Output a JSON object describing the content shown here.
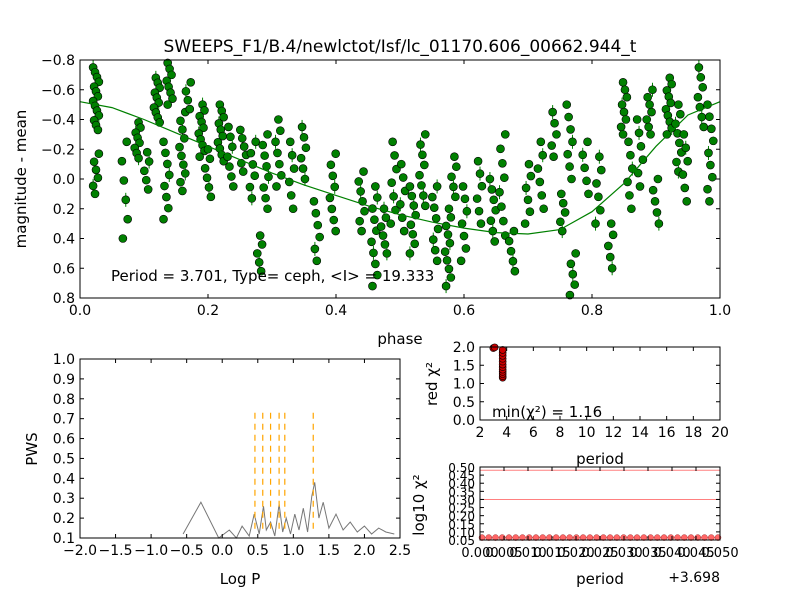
{
  "chart_data": [
    {
      "id": "lightcurve",
      "type": "scatter",
      "title": "SWEEPS_F1/B.4/newlctot/Isf/lc_01170.606_00662.944_t",
      "xlabel": "phase",
      "ylabel": "magnitude - mean",
      "xlim": [
        0.0,
        1.0
      ],
      "ylim": [
        0.8,
        -0.8
      ],
      "y_inverted": true,
      "xticks": [
        "0.0",
        "0.2",
        "0.4",
        "0.6",
        "0.8",
        "1.0"
      ],
      "yticks": [
        "−0.8",
        "−0.6",
        "−0.4",
        "−0.2",
        "0.0",
        "0.2",
        "0.4",
        "0.6",
        "0.8"
      ],
      "annotation": "Period = 3.701, Type= ceph, <I> = 19.333",
      "marker_color": "#008000",
      "fit_color": "#008000",
      "fit": {
        "x": [
          0.0,
          0.05,
          0.1,
          0.15,
          0.2,
          0.25,
          0.3,
          0.35,
          0.4,
          0.45,
          0.5,
          0.55,
          0.6,
          0.65,
          0.7,
          0.75,
          0.8,
          0.85,
          0.9,
          0.95,
          1.0
        ],
        "y": [
          -0.52,
          -0.48,
          -0.4,
          -0.31,
          -0.22,
          -0.13,
          -0.04,
          0.04,
          0.11,
          0.18,
          0.24,
          0.29,
          0.33,
          0.36,
          0.37,
          0.34,
          0.22,
          0.03,
          -0.22,
          -0.43,
          -0.52
        ]
      },
      "clusters": [
        {
          "x": 0.025,
          "y_min": -0.75,
          "y_max": -0.33,
          "n": 14
        },
        {
          "x": 0.025,
          "y_min": -0.17,
          "y_max": 0.1,
          "n": 6
        },
        {
          "x": 0.07,
          "y_min": -0.25,
          "y_max": 0.4,
          "n": 6
        },
        {
          "x": 0.09,
          "y_min": -0.38,
          "y_max": -0.14,
          "n": 8
        },
        {
          "x": 0.105,
          "y_min": -0.18,
          "y_max": 0.07,
          "n": 5
        },
        {
          "x": 0.12,
          "y_min": -0.68,
          "y_max": -0.38,
          "n": 10
        },
        {
          "x": 0.14,
          "y_min": -0.78,
          "y_max": -0.5,
          "n": 8
        },
        {
          "x": 0.135,
          "y_min": -0.25,
          "y_max": 0.27,
          "n": 8
        },
        {
          "x": 0.16,
          "y_min": -0.45,
          "y_max": 0.08,
          "n": 10
        },
        {
          "x": 0.17,
          "y_min": -0.65,
          "y_max": -0.47,
          "n": 4
        },
        {
          "x": 0.19,
          "y_min": -0.5,
          "y_max": -0.15,
          "n": 10
        },
        {
          "x": 0.2,
          "y_min": -0.2,
          "y_max": 0.12,
          "n": 6
        },
        {
          "x": 0.22,
          "y_min": -0.5,
          "y_max": -0.12,
          "n": 10
        },
        {
          "x": 0.235,
          "y_min": -0.35,
          "y_max": 0.05,
          "n": 7
        },
        {
          "x": 0.255,
          "y_min": -0.33,
          "y_max": -0.05,
          "n": 6
        },
        {
          "x": 0.27,
          "y_min": -0.25,
          "y_max": 0.13,
          "n": 6
        },
        {
          "x": 0.29,
          "y_min": -0.3,
          "y_max": 0.2,
          "n": 8
        },
        {
          "x": 0.28,
          "y_min": 0.38,
          "y_max": 0.62,
          "n": 5
        },
        {
          "x": 0.31,
          "y_min": -0.4,
          "y_max": 0.05,
          "n": 7
        },
        {
          "x": 0.33,
          "y_min": -0.25,
          "y_max": 0.2,
          "n": 6
        },
        {
          "x": 0.35,
          "y_min": -0.35,
          "y_max": 0.0,
          "n": 6
        },
        {
          "x": 0.37,
          "y_min": 0.15,
          "y_max": 0.55,
          "n": 6
        },
        {
          "x": 0.395,
          "y_min": -0.17,
          "y_max": 0.35,
          "n": 8
        },
        {
          "x": 0.44,
          "y_min": -0.05,
          "y_max": 0.35,
          "n": 7
        },
        {
          "x": 0.46,
          "y_min": 0.05,
          "y_max": 0.72,
          "n": 10
        },
        {
          "x": 0.475,
          "y_min": 0.2,
          "y_max": 0.5,
          "n": 6
        },
        {
          "x": 0.49,
          "y_min": -0.25,
          "y_max": 0.3,
          "n": 7
        },
        {
          "x": 0.505,
          "y_min": -0.1,
          "y_max": 0.35,
          "n": 6
        },
        {
          "x": 0.52,
          "y_min": 0.05,
          "y_max": 0.5,
          "n": 8
        },
        {
          "x": 0.535,
          "y_min": -0.3,
          "y_max": 0.18,
          "n": 8
        },
        {
          "x": 0.555,
          "y_min": 0.05,
          "y_max": 0.55,
          "n": 8
        },
        {
          "x": 0.575,
          "y_min": 0.2,
          "y_max": 0.72,
          "n": 10
        },
        {
          "x": 0.585,
          "y_min": -0.15,
          "y_max": 0.12,
          "n": 5
        },
        {
          "x": 0.6,
          "y_min": 0.05,
          "y_max": 0.55,
          "n": 7
        },
        {
          "x": 0.625,
          "y_min": -0.12,
          "y_max": 0.3,
          "n": 6
        },
        {
          "x": 0.645,
          "y_min": 0.0,
          "y_max": 0.42,
          "n": 7
        },
        {
          "x": 0.66,
          "y_min": -0.3,
          "y_max": 0.38,
          "n": 8
        },
        {
          "x": 0.675,
          "y_min": 0.35,
          "y_max": 0.62,
          "n": 5
        },
        {
          "x": 0.7,
          "y_min": -0.1,
          "y_max": 0.3,
          "n": 6
        },
        {
          "x": 0.72,
          "y_min": -0.25,
          "y_max": 0.2,
          "n": 6
        },
        {
          "x": 0.74,
          "y_min": -0.45,
          "y_max": -0.15,
          "n": 5
        },
        {
          "x": 0.755,
          "y_min": 0.1,
          "y_max": 0.35,
          "n": 5
        },
        {
          "x": 0.765,
          "y_min": -0.5,
          "y_max": 0.0,
          "n": 7
        },
        {
          "x": 0.77,
          "y_min": 0.5,
          "y_max": 0.78,
          "n": 5
        },
        {
          "x": 0.79,
          "y_min": -0.25,
          "y_max": 0.1,
          "n": 5
        },
        {
          "x": 0.81,
          "y_min": -0.15,
          "y_max": 0.3,
          "n": 6
        },
        {
          "x": 0.83,
          "y_min": 0.3,
          "y_max": 0.6,
          "n": 5
        },
        {
          "x": 0.85,
          "y_min": -0.65,
          "y_max": -0.3,
          "n": 8
        },
        {
          "x": 0.86,
          "y_min": -0.25,
          "y_max": 0.2,
          "n": 6
        },
        {
          "x": 0.875,
          "y_min": -0.4,
          "y_max": 0.05,
          "n": 6
        },
        {
          "x": 0.89,
          "y_min": -0.6,
          "y_max": -0.3,
          "n": 7
        },
        {
          "x": 0.9,
          "y_min": 0.0,
          "y_max": 0.3,
          "n": 5
        },
        {
          "x": 0.92,
          "y_min": -0.68,
          "y_max": -0.3,
          "n": 10
        },
        {
          "x": 0.935,
          "y_min": -0.5,
          "y_max": -0.05,
          "n": 8
        },
        {
          "x": 0.945,
          "y_min": -0.3,
          "y_max": 0.15,
          "n": 6
        },
        {
          "x": 0.97,
          "y_min": -0.75,
          "y_max": -0.35,
          "n": 7
        },
        {
          "x": 0.985,
          "y_min": -0.5,
          "y_max": 0.15,
          "n": 9
        }
      ]
    },
    {
      "id": "periodogram",
      "type": "line",
      "xlabel": "Log P",
      "ylabel": "PWS",
      "xlim": [
        -2.0,
        2.5
      ],
      "ylim": [
        0.1,
        1.0
      ],
      "xticks": [
        "−2.0",
        "−1.5",
        "−1.0",
        "−0.5",
        "0.0",
        "0.5",
        "1.0",
        "1.5",
        "2.0",
        "2.5"
      ],
      "yticks": [
        "0.1",
        "0.2",
        "0.3",
        "0.4",
        "0.5",
        "0.6",
        "0.7",
        "0.8",
        "0.9",
        "1.0"
      ],
      "line_color": "#777777",
      "marker_color": "#ffa500",
      "peak_markers": [
        0.46,
        0.57,
        0.68,
        0.8,
        0.88,
        1.28
      ],
      "marker_ymax": 0.73,
      "series_x": [
        -0.55,
        -0.3,
        -0.05,
        0.1,
        0.2,
        0.28,
        0.38,
        0.45,
        0.52,
        0.58,
        0.62,
        0.68,
        0.74,
        0.8,
        0.85,
        0.9,
        0.96,
        1.02,
        1.08,
        1.14,
        1.2,
        1.26,
        1.3,
        1.36,
        1.42,
        1.5,
        1.6,
        1.7,
        1.8,
        1.9,
        2.0,
        2.1,
        2.2,
        2.3,
        2.42
      ],
      "series_y": [
        0.12,
        0.28,
        0.1,
        0.14,
        0.1,
        0.16,
        0.11,
        0.22,
        0.12,
        0.26,
        0.14,
        0.18,
        0.11,
        0.27,
        0.13,
        0.2,
        0.12,
        0.22,
        0.14,
        0.25,
        0.13,
        0.31,
        0.38,
        0.2,
        0.28,
        0.15,
        0.22,
        0.14,
        0.18,
        0.13,
        0.16,
        0.12,
        0.15,
        0.13,
        0.12
      ]
    },
    {
      "id": "chi2_vs_period",
      "type": "scatter",
      "ylabel": "red χ²",
      "xlabel": "period",
      "xlim": [
        2,
        20
      ],
      "ylim": [
        0.0,
        2.0
      ],
      "xticks": [
        "2",
        "4",
        "6",
        "8",
        "10",
        "12",
        "14",
        "16",
        "18",
        "20"
      ],
      "yticks": [
        "0.0",
        "0.5",
        "1.0",
        "1.5",
        "2.0"
      ],
      "annotation": "min(χ²) = 1.16",
      "marker_color": "#cc0000",
      "points": [
        {
          "x": 3.0,
          "y": 1.97
        },
        {
          "x": 3.1,
          "y": 1.99
        },
        {
          "x": 3.7,
          "y": 1.16
        },
        {
          "x": 3.7,
          "y": 1.2
        },
        {
          "x": 3.7,
          "y": 1.26
        },
        {
          "x": 3.7,
          "y": 1.32
        },
        {
          "x": 3.7,
          "y": 1.38
        },
        {
          "x": 3.7,
          "y": 1.45
        },
        {
          "x": 3.7,
          "y": 1.52
        },
        {
          "x": 3.7,
          "y": 1.6
        },
        {
          "x": 3.7,
          "y": 1.68
        },
        {
          "x": 3.7,
          "y": 1.76
        },
        {
          "x": 3.7,
          "y": 1.84
        },
        {
          "x": 3.7,
          "y": 1.92
        }
      ]
    },
    {
      "id": "log_chi2_fine",
      "type": "scatter",
      "ylabel": "log10 χ²",
      "xlabel": "period",
      "offset_text": "+3.698",
      "ylim": [
        0.05,
        0.5
      ],
      "xticks": [
        "0.000",
        "0.005",
        "0.010",
        "0.015",
        "0.020",
        "0.025",
        "0.030",
        "0.035",
        "0.040",
        "0.045",
        "0.050"
      ],
      "yticks": [
        "0.05",
        "0.10",
        "0.15",
        "0.20",
        "0.25",
        "0.30",
        "0.35",
        "0.40",
        "0.45",
        "0.50"
      ],
      "hlines": [
        0.065,
        0.3,
        0.48
      ],
      "hline_color": "#ff8080",
      "marker_color": "#ff6666",
      "points_y": 0.065,
      "n_points": 36
    }
  ]
}
